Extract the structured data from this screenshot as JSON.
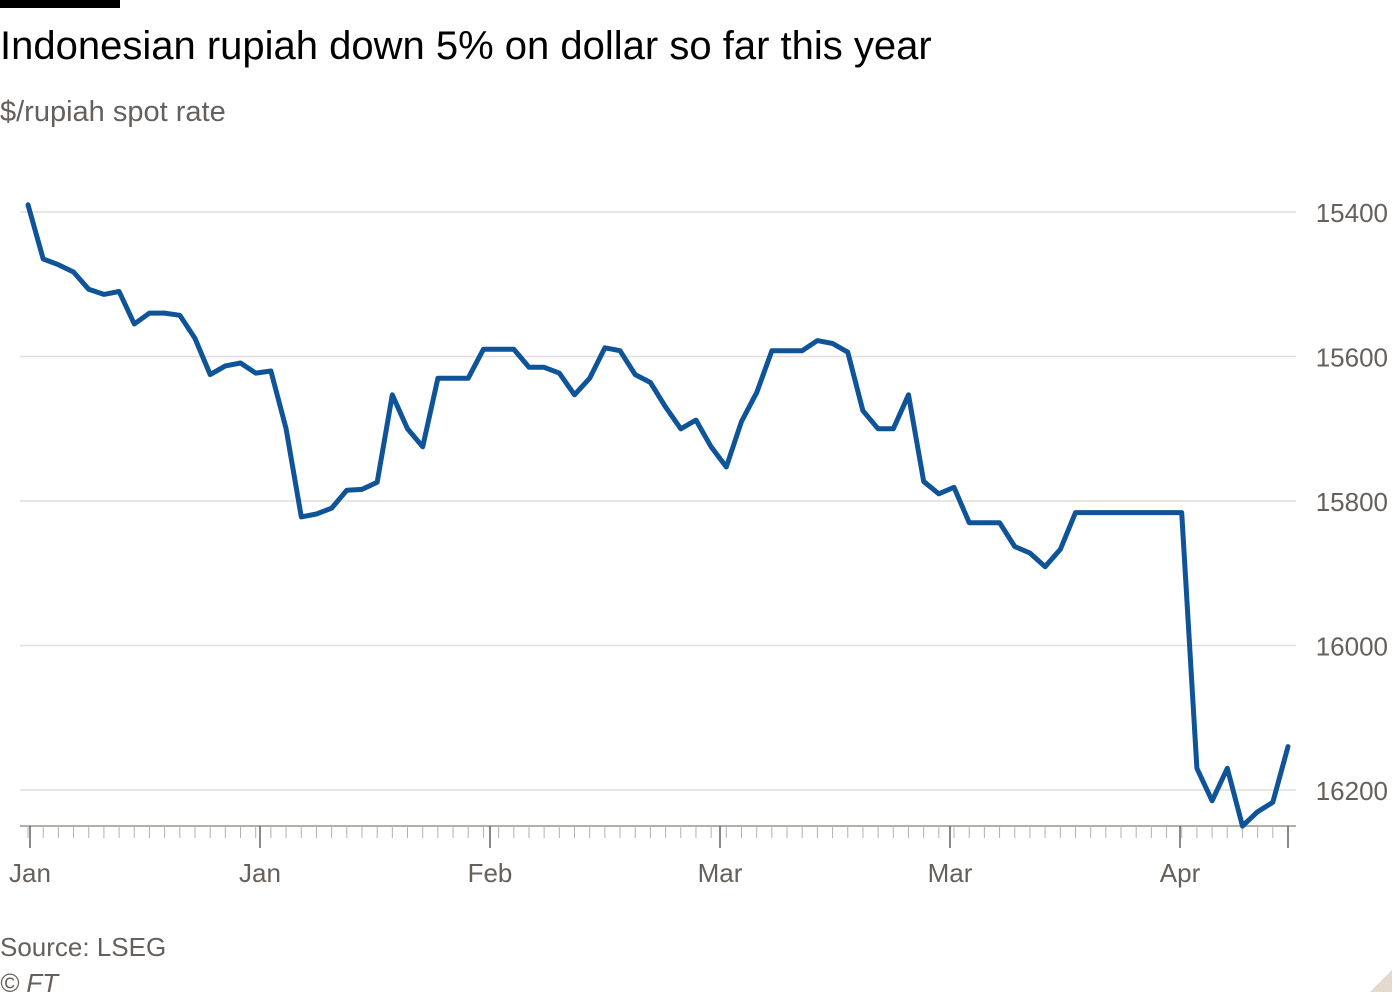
{
  "header": {
    "title": "Indonesian rupiah down 5% on dollar so far this year",
    "subtitle": "$/rupiah spot rate"
  },
  "footer": {
    "source": "Source: LSEG",
    "credit": "© FT"
  },
  "chart_data": {
    "type": "line",
    "title": "Indonesian rupiah down 5% on dollar so far this year",
    "subtitle": "$/rupiah spot rate",
    "y_inverted": true,
    "ylim": [
      15400,
      16200
    ],
    "y_ticks": [
      15400,
      15600,
      15800,
      16000,
      16200
    ],
    "y_axis_position": "right",
    "grid": true,
    "x_tick_labels": [
      "Jan",
      "Jan",
      "Feb",
      "Mar",
      "Mar",
      "Apr"
    ],
    "series": [
      {
        "color": "#0f5499",
        "values": [
          15390,
          15465,
          15473,
          15483,
          15507,
          15514,
          15510,
          15555,
          15540,
          15540,
          15543,
          15575,
          15625,
          15613,
          15609,
          15623,
          15620,
          15700,
          15822,
          15818,
          15810,
          15785,
          15784,
          15774,
          15653,
          15700,
          15725,
          15630,
          15630,
          15630,
          15590,
          15590,
          15590,
          15615,
          15615,
          15623,
          15653,
          15630,
          15588,
          15592,
          15625,
          15636,
          15670,
          15700,
          15688,
          15725,
          15753,
          15690,
          15650,
          15592,
          15592,
          15592,
          15578,
          15582,
          15594,
          15675,
          15700,
          15700,
          15653,
          15773,
          15790,
          15781,
          15830,
          15830,
          15830,
          15863,
          15872,
          15891,
          15867,
          15816,
          15816,
          15816,
          15816,
          15816,
          15816,
          15816,
          15816,
          16170,
          16215,
          16170,
          16250,
          16230,
          16217,
          16140
        ]
      }
    ]
  }
}
